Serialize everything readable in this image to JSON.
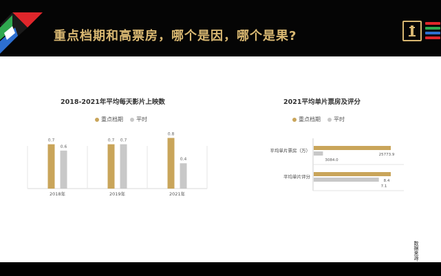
{
  "slide": {
    "title": "重点档期和高票房，哪个是因，哪个是果?"
  },
  "colors": {
    "gold": "#c9a55a",
    "gray": "#c8c8c8",
    "title_gold": "#d9b872"
  },
  "icons": {
    "logo": "film-brand-logo",
    "menu": "striped-lines-icon"
  },
  "source_note": "数据来源：灯塔专业版",
  "chart_data": [
    {
      "type": "bar",
      "title": "2018-2021年平均每天影片上映数",
      "categories": [
        "2018年",
        "2019年",
        "2021年"
      ],
      "series": [
        {
          "name": "重点档期",
          "values": [
            0.7,
            0.7,
            0.8
          ],
          "labels": [
            "0.7",
            "0.7",
            "0.8"
          ],
          "color": "#c9a55a"
        },
        {
          "name": "平时",
          "values": [
            0.6,
            0.7,
            0.4
          ],
          "labels": [
            "0.6",
            "0.7",
            "0.4"
          ],
          "color": "#c8c8c8"
        }
      ],
      "ylim": [
        0,
        1.0
      ],
      "legend": "top",
      "grid": false
    },
    {
      "type": "bar",
      "orientation": "horizontal",
      "title": "2021平均单片票房及评分",
      "categories": [
        "平均单片票房（万）",
        "平均单片评分"
      ],
      "series": [
        {
          "name": "重点档期",
          "values": [
            25773.9,
            8.4
          ],
          "labels": [
            "25773.9",
            "8.4"
          ],
          "color": "#c9a55a"
        },
        {
          "name": "平时",
          "values": [
            3084.0,
            7.1
          ],
          "labels": [
            "3084.0",
            "7.1"
          ],
          "color": "#c8c8c8"
        }
      ],
      "legend": "top",
      "grid": false
    }
  ]
}
